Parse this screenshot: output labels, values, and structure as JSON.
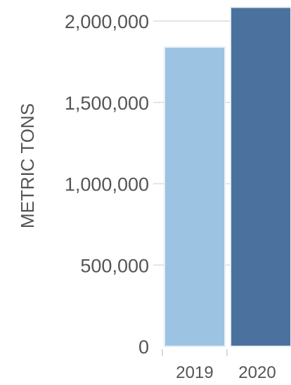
{
  "chart_data": {
    "type": "bar",
    "title": "",
    "xlabel": "",
    "ylabel": "METRIC TONS",
    "categories": [
      "2019",
      "2020"
    ],
    "values": [
      1840000,
      2085000
    ],
    "colors": [
      "#9dc3e3",
      "#4b729e"
    ],
    "ylim": [
      0,
      2000000
    ],
    "yticks": [
      0,
      500000,
      1000000,
      1500000,
      2000000
    ],
    "ytick_labels": [
      "0",
      "500,000",
      "1,000,000",
      "1,500,000",
      "2,000,000"
    ],
    "grid": true,
    "legend": "none"
  }
}
